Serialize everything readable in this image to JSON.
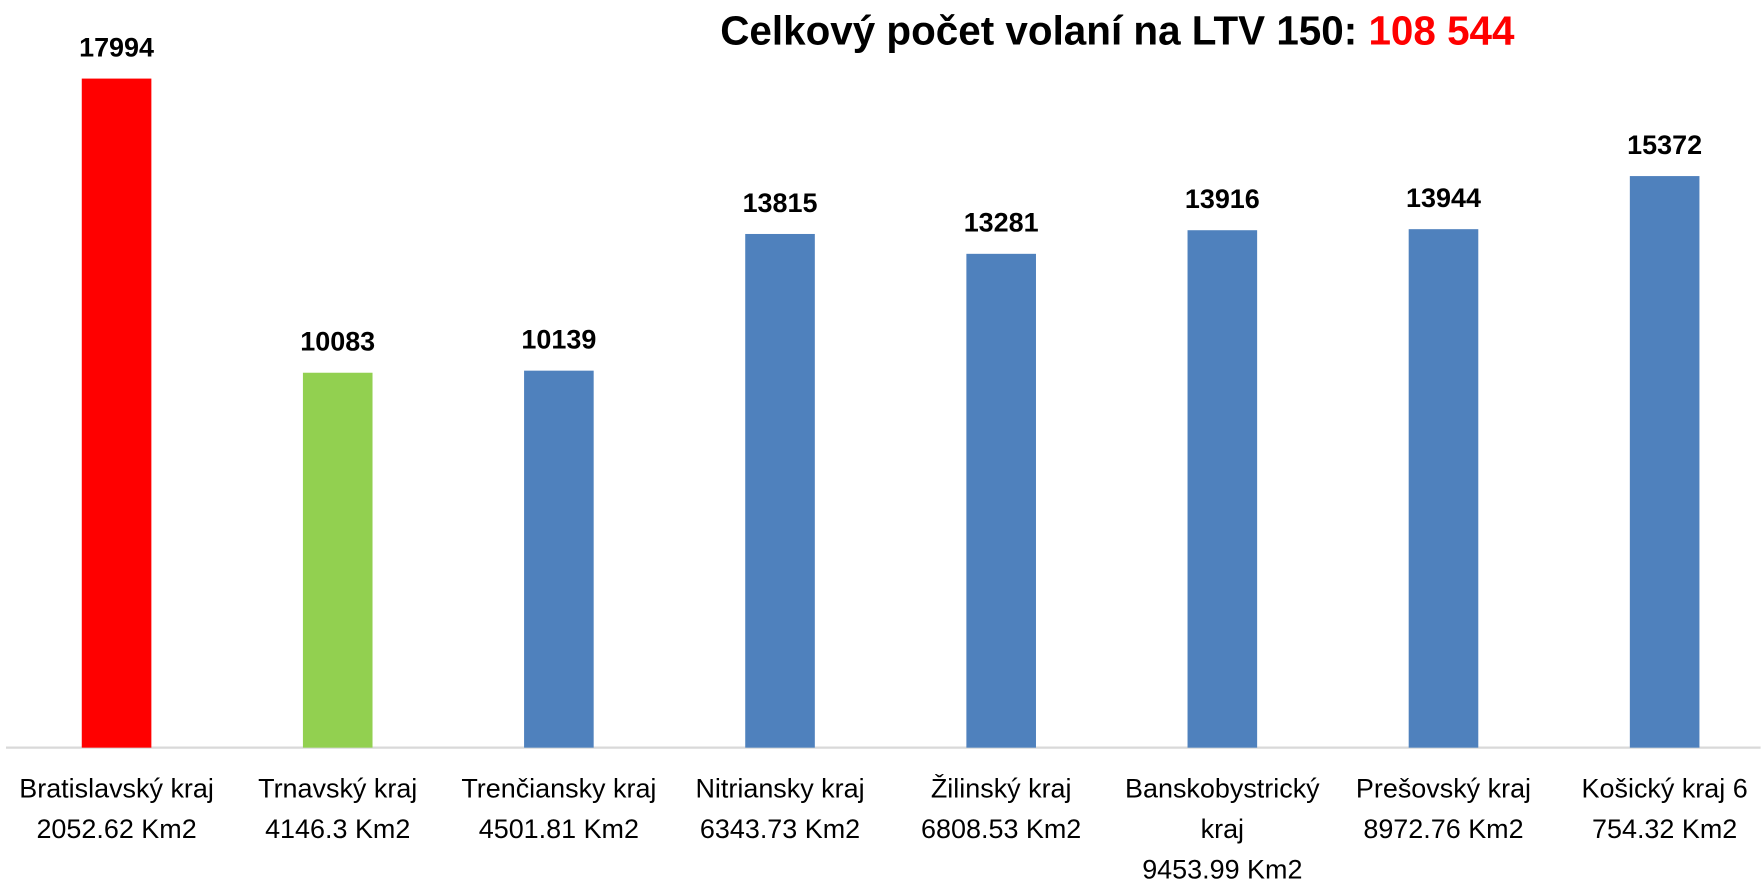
{
  "chart_data": {
    "type": "bar",
    "title": "Celkový počet volaní na LTV 150:",
    "title_highlight": "108 544",
    "categories": [
      [
        "Bratislavský kraj",
        "2052.62 Km2"
      ],
      [
        "Trnavský kraj",
        "4146.3 Km2"
      ],
      [
        "Trenčiansky kraj",
        "4501.81 Km2"
      ],
      [
        "Nitriansky kraj",
        "6343.73 Km2"
      ],
      [
        "Žilinský kraj",
        "6808.53 Km2"
      ],
      [
        "Banskobystrický",
        "kraj",
        "9453.99 Km2"
      ],
      [
        "Prešovský kraj",
        "8972.76 Km2"
      ],
      [
        "Košický kraj 6",
        "754.32 Km2"
      ]
    ],
    "values": [
      17994,
      10083,
      10139,
      13815,
      13281,
      13916,
      13944,
      15372
    ],
    "colors": [
      "#ff0000",
      "#92d050",
      "#4f81bd",
      "#4f81bd",
      "#4f81bd",
      "#4f81bd",
      "#4f81bd",
      "#4f81bd"
    ],
    "title_highlight_color": "#ff0000",
    "ylim": [
      0,
      18000
    ]
  }
}
